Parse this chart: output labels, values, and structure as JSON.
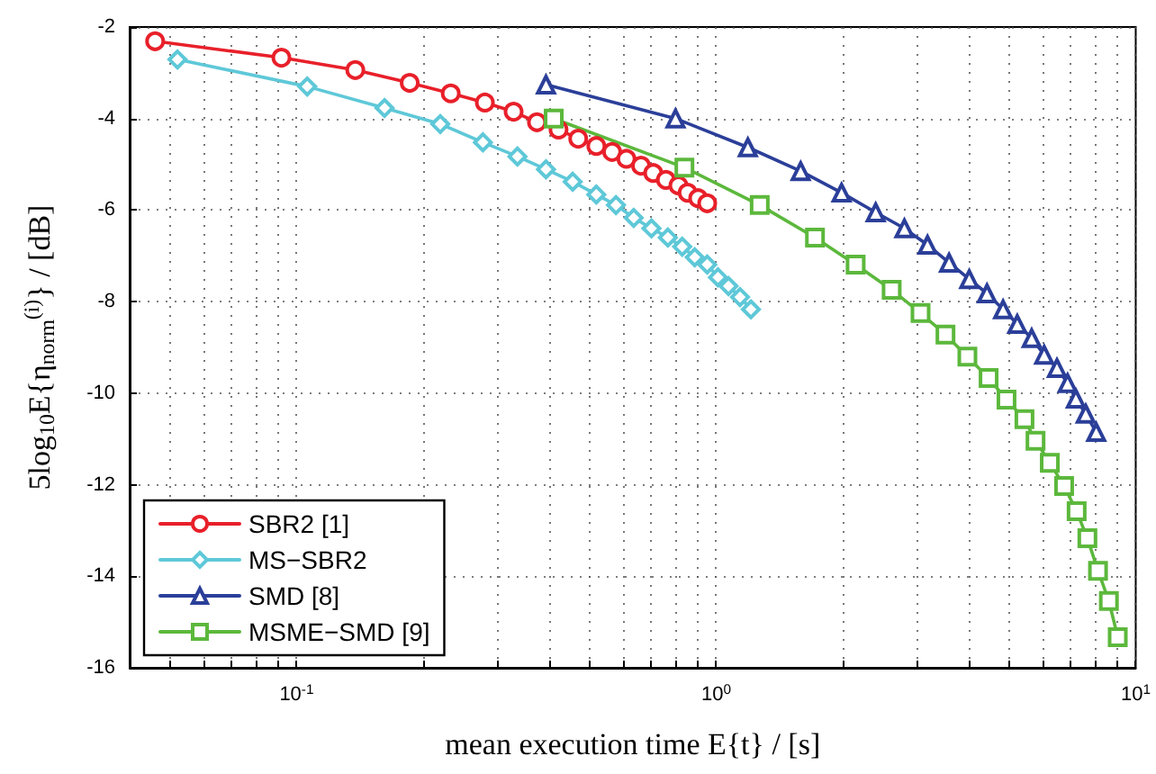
{
  "chart_data": {
    "type": "line",
    "xlabel": "mean execution time E{t} / [s]",
    "ylabel": "5log$_{10}$E{η$_{norm}$$^{(i)}$} / [dB]",
    "log": "x",
    "grid": true,
    "legend": "bottom left",
    "line_style": "solid",
    "xlim": [
      0.04,
      10
    ],
    "ylim": [
      -16,
      -2
    ],
    "xticks": [
      {
        "value": 0.04,
        "label": null
      },
      {
        "value": 0.05,
        "label": null
      },
      {
        "value": 0.06,
        "label": null
      },
      {
        "value": 0.07,
        "label": null
      },
      {
        "value": 0.08,
        "label": null
      },
      {
        "value": 0.09,
        "label": null
      },
      {
        "value": 0.1,
        "label": "10$^{-1}$"
      },
      {
        "value": 0.2,
        "label": null
      },
      {
        "value": 0.3,
        "label": null
      },
      {
        "value": 0.4,
        "label": null
      },
      {
        "value": 0.5,
        "label": null
      },
      {
        "value": 0.6,
        "label": null
      },
      {
        "value": 0.7,
        "label": null
      },
      {
        "value": 0.8,
        "label": null
      },
      {
        "value": 0.9,
        "label": null
      },
      {
        "value": 1,
        "label": "10$^{0}$"
      },
      {
        "value": 2,
        "label": null
      },
      {
        "value": 3,
        "label": null
      },
      {
        "value": 4,
        "label": null
      },
      {
        "value": 5,
        "label": null
      },
      {
        "value": 6,
        "label": null
      },
      {
        "value": 7,
        "label": null
      },
      {
        "value": 8,
        "label": null
      },
      {
        "value": 9,
        "label": null
      },
      {
        "value": 10,
        "label": "10$^{1}$"
      }
    ],
    "yticks": [
      -16,
      -14,
      -12,
      -10,
      -8,
      -6,
      -4,
      -2
    ],
    "series": [
      {
        "name": "SBR2 [1]",
        "color": "#e8202a",
        "marker": "circle",
        "x": [
          0.046,
          0.092,
          0.138,
          0.186,
          0.233,
          0.281,
          0.329,
          0.374,
          0.421,
          0.469,
          0.518,
          0.565,
          0.611,
          0.662,
          0.708,
          0.759,
          0.813,
          0.855,
          0.906,
          0.952
        ],
        "values": [
          -2.31,
          -2.67,
          -2.94,
          -3.22,
          -3.45,
          -3.65,
          -3.85,
          -4.08,
          -4.24,
          -4.44,
          -4.6,
          -4.73,
          -4.88,
          -5.03,
          -5.19,
          -5.34,
          -5.46,
          -5.62,
          -5.74,
          -5.85
        ]
      },
      {
        "name": "MS−SBR2",
        "color": "#5ec8d8",
        "marker": "diamond",
        "x": [
          0.052,
          0.106,
          0.162,
          0.22,
          0.278,
          0.336,
          0.393,
          0.455,
          0.518,
          0.577,
          0.636,
          0.701,
          0.767,
          0.83,
          0.889,
          0.952,
          1.01,
          1.07,
          1.14,
          1.21
        ],
        "values": [
          -2.71,
          -3.3,
          -3.77,
          -4.12,
          -4.52,
          -4.83,
          -5.11,
          -5.38,
          -5.66,
          -5.89,
          -6.17,
          -6.4,
          -6.6,
          -6.8,
          -7.03,
          -7.19,
          -7.47,
          -7.66,
          -7.9,
          -8.17
        ]
      },
      {
        "name": "SMD [8]",
        "color": "#2b3f99",
        "marker": "triangle",
        "x": [
          0.393,
          0.8,
          1.19,
          1.59,
          1.99,
          2.4,
          2.81,
          3.19,
          3.59,
          4.01,
          4.42,
          4.83,
          5.22,
          5.65,
          6.05,
          6.49,
          6.88,
          7.2,
          7.6,
          8.05
        ],
        "values": [
          -3.26,
          -4.0,
          -4.63,
          -5.15,
          -5.62,
          -6.05,
          -6.4,
          -6.76,
          -7.15,
          -7.51,
          -7.82,
          -8.17,
          -8.49,
          -8.8,
          -9.16,
          -9.45,
          -9.78,
          -10.12,
          -10.45,
          -10.85
        ]
      },
      {
        "name": "MSME−SMD [9]",
        "color": "#5cb83c",
        "marker": "square",
        "x": [
          0.41,
          0.84,
          1.27,
          1.72,
          2.15,
          2.62,
          3.07,
          3.52,
          3.97,
          4.46,
          4.92,
          5.43,
          5.77,
          6.24,
          6.75,
          7.23,
          7.67,
          8.13,
          8.63,
          9.06
        ],
        "values": [
          -4.0,
          -5.07,
          -5.89,
          -6.6,
          -7.19,
          -7.74,
          -8.25,
          -8.72,
          -9.2,
          -9.67,
          -10.14,
          -10.57,
          -11.04,
          -11.52,
          -12.03,
          -12.58,
          -13.17,
          -13.88,
          -14.54,
          -15.33
        ]
      }
    ]
  }
}
